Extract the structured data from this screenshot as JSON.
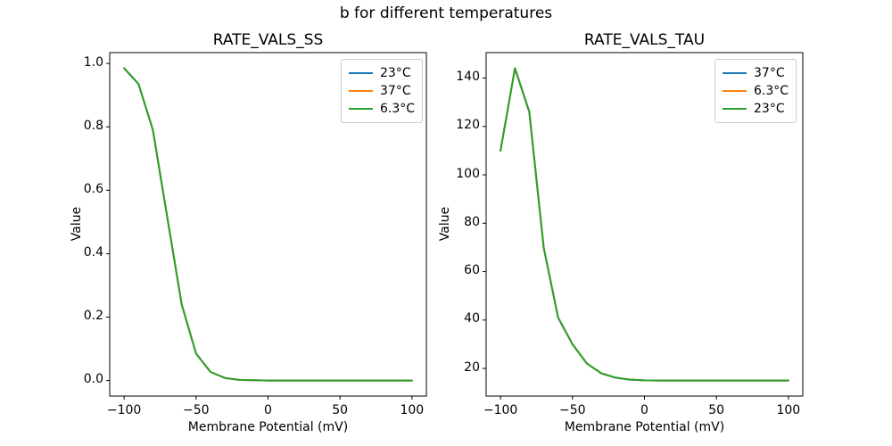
{
  "suptitle": "b for different temperatures",
  "palette": {
    "blue": "#1f77b4",
    "orange": "#ff7f0e",
    "green": "#2ca02c",
    "axis_color": "#000000",
    "legend_border": "#cccccc",
    "background": "#ffffff"
  },
  "chart_data": [
    {
      "type": "line",
      "title": "RATE_VALS_SS",
      "xlabel": "Membrane Potential (mV)",
      "ylabel": "Value",
      "xlim": [
        -110,
        110
      ],
      "ylim": [
        -0.049,
        1.034
      ],
      "grid": false,
      "legend_position": "upper right",
      "xticks": [
        -100,
        -50,
        0,
        50,
        100
      ],
      "xtick_labels": [
        "−100",
        "−50",
        "0",
        "50",
        "100"
      ],
      "yticks": [
        0.0,
        0.2,
        0.4,
        0.6,
        0.8,
        1.0
      ],
      "ytick_labels": [
        "0.0",
        "0.2",
        "0.4",
        "0.6",
        "0.8",
        "1.0"
      ],
      "x": [
        -100,
        -90,
        -80,
        -70,
        -60,
        -50,
        -40,
        -30,
        -20,
        -10,
        0,
        10,
        20,
        30,
        40,
        50,
        60,
        70,
        80,
        90,
        100
      ],
      "series": [
        {
          "name": "23°C",
          "color": "#1f77b4",
          "values": [
            0.985,
            0.935,
            0.79,
            0.515,
            0.24,
            0.085,
            0.027,
            0.008,
            0.002,
            0.001,
            0,
            0,
            0,
            0,
            0,
            0,
            0,
            0,
            0,
            0,
            0
          ]
        },
        {
          "name": "37°C",
          "color": "#ff7f0e",
          "values": [
            0.985,
            0.935,
            0.79,
            0.515,
            0.24,
            0.085,
            0.027,
            0.008,
            0.002,
            0.001,
            0,
            0,
            0,
            0,
            0,
            0,
            0,
            0,
            0,
            0,
            0
          ]
        },
        {
          "name": "6.3°C",
          "color": "#2ca02c",
          "values": [
            0.985,
            0.935,
            0.79,
            0.515,
            0.24,
            0.085,
            0.027,
            0.008,
            0.002,
            0.001,
            0,
            0,
            0,
            0,
            0,
            0,
            0,
            0,
            0,
            0,
            0
          ]
        }
      ],
      "note": "all three temperature curves overlap exactly; green curve drawn last is visible"
    },
    {
      "type": "line",
      "title": "RATE_VALS_TAU",
      "xlabel": "Membrane Potential (mV)",
      "ylabel": "Value",
      "xlim": [
        -110,
        110
      ],
      "ylim": [
        8.6,
        150.5
      ],
      "grid": false,
      "legend_position": "upper right",
      "xticks": [
        -100,
        -50,
        0,
        50,
        100
      ],
      "xtick_labels": [
        "−100",
        "−50",
        "0",
        "50",
        "100"
      ],
      "yticks": [
        20,
        40,
        60,
        80,
        100,
        120,
        140
      ],
      "ytick_labels": [
        "20",
        "40",
        "60",
        "80",
        "100",
        "120",
        "140"
      ],
      "x": [
        -100,
        -90,
        -80,
        -70,
        -60,
        -50,
        -40,
        -30,
        -20,
        -10,
        0,
        10,
        20,
        30,
        40,
        50,
        60,
        70,
        80,
        90,
        100
      ],
      "series": [
        {
          "name": "37°C",
          "color": "#1f77b4",
          "values": [
            110,
            144,
            126,
            70,
            41,
            30,
            22,
            18,
            16.2,
            15.4,
            15.1,
            15,
            15,
            15,
            15,
            15,
            15,
            15,
            15,
            15,
            15
          ]
        },
        {
          "name": "6.3°C",
          "color": "#ff7f0e",
          "values": [
            110,
            144,
            126,
            70,
            41,
            30,
            22,
            18,
            16.2,
            15.4,
            15.1,
            15,
            15,
            15,
            15,
            15,
            15,
            15,
            15,
            15,
            15
          ]
        },
        {
          "name": "23°C",
          "color": "#2ca02c",
          "values": [
            110,
            144,
            126,
            70,
            41,
            30,
            22,
            18,
            16.2,
            15.4,
            15.1,
            15,
            15,
            15,
            15,
            15,
            15,
            15,
            15,
            15,
            15
          ]
        }
      ],
      "note": "all three temperature curves overlap exactly; green curve drawn last is visible"
    }
  ]
}
